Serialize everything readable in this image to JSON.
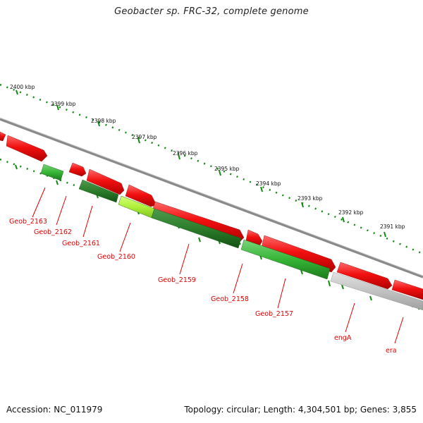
{
  "title": "Geobacter sp. FRC-32, complete genome",
  "footer": {
    "accession": "Accession: NC_011979",
    "summary": "Topology: circular; Length: 4,304,501 bp; Genes: 3,855"
  },
  "colors": {
    "forward_gene": "#e00000",
    "reverse_gene": "#2ea82e",
    "highlight_gene": "#aef03a",
    "other_gene": "#bdbdbd",
    "backbone": "#8a8a8a",
    "ticks": "#138a13",
    "label": "#e00000"
  },
  "scale_labels": [
    "2400 kbp",
    "2399 kbp",
    "2398 kbp",
    "2397 kbp",
    "2396 kbp",
    "2395 kbp",
    "2394 kbp",
    "2393 kbp",
    "2392 kbp",
    "2391 kbp"
  ],
  "gene_labels": [
    "Geob_2163",
    "Geob_2162",
    "Geob_2161",
    "Geob_2160",
    "Geob_2159",
    "Geob_2158",
    "Geob_2157",
    "engA",
    "era"
  ]
}
